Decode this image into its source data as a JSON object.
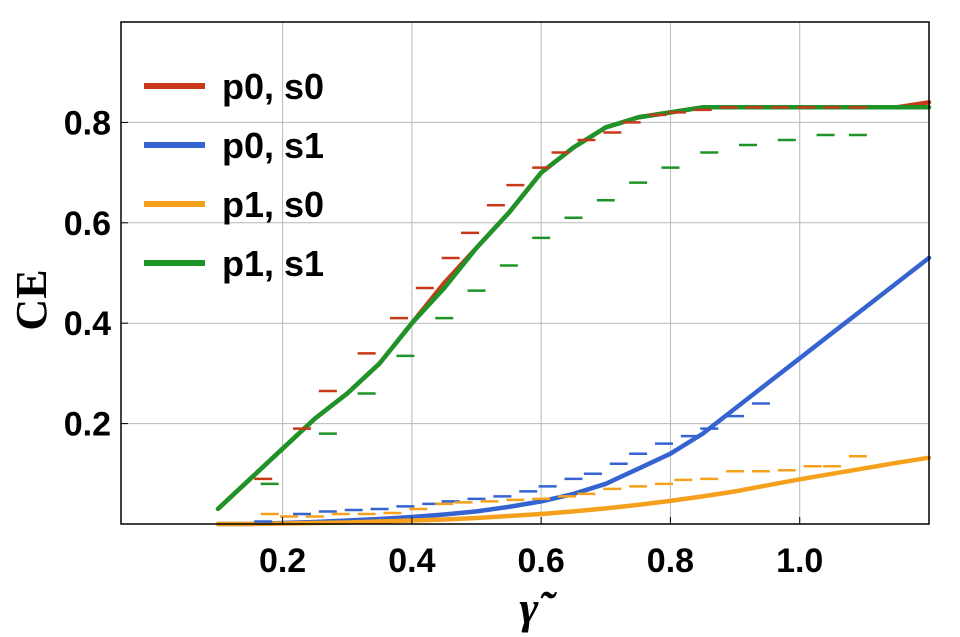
{
  "chart_data": {
    "type": "line",
    "title": "",
    "xlabel": "γ̃",
    "ylabel": "CE",
    "xlim": [
      0.0,
      1.2
    ],
    "ylim": [
      0.0,
      1.0
    ],
    "x_ticks": [
      0.2,
      0.4,
      0.6,
      0.8,
      1.0
    ],
    "x_tick_labels": [
      "0.2",
      "0.4",
      "0.6",
      "0.8",
      "1.0"
    ],
    "y_ticks": [
      0.2,
      0.4,
      0.6,
      0.8
    ],
    "y_tick_labels": [
      "0.2",
      "0.4",
      "0.6",
      "0.8"
    ],
    "grid": true,
    "legend_position": "top-left",
    "series": [
      {
        "name": "p0, s0",
        "color": "#C8391A",
        "curve": {
          "x": [
            0.1,
            0.15,
            0.2,
            0.25,
            0.3,
            0.35,
            0.4,
            0.45,
            0.5,
            0.55,
            0.6,
            0.65,
            0.7,
            0.75,
            0.8,
            0.85,
            0.9,
            0.95,
            1.0,
            1.05,
            1.1,
            1.15,
            1.2
          ],
          "y": [
            0.03,
            0.09,
            0.15,
            0.21,
            0.26,
            0.32,
            0.4,
            0.48,
            0.55,
            0.62,
            0.7,
            0.75,
            0.79,
            0.81,
            0.82,
            0.83,
            0.83,
            0.83,
            0.83,
            0.83,
            0.83,
            0.83,
            0.84
          ]
        },
        "points": {
          "x": [
            0.17,
            0.23,
            0.27,
            0.33,
            0.38,
            0.42,
            0.46,
            0.49,
            0.53,
            0.56,
            0.6,
            0.63,
            0.67,
            0.71,
            0.74,
            0.78,
            0.81,
            0.85,
            0.89,
            0.93,
            0.97,
            1.01,
            1.05,
            1.09
          ],
          "y": [
            0.09,
            0.19,
            0.265,
            0.34,
            0.41,
            0.47,
            0.53,
            0.58,
            0.635,
            0.675,
            0.71,
            0.74,
            0.765,
            0.78,
            0.8,
            0.815,
            0.82,
            0.825,
            0.83,
            0.83,
            0.83,
            0.83,
            0.83,
            0.83
          ]
        }
      },
      {
        "name": "p0, s1",
        "color": "#3563D0",
        "curve": {
          "x": [
            0.1,
            0.15,
            0.2,
            0.25,
            0.3,
            0.35,
            0.4,
            0.45,
            0.5,
            0.55,
            0.6,
            0.65,
            0.7,
            0.75,
            0.8,
            0.85,
            0.9,
            0.95,
            1.0,
            1.05,
            1.1,
            1.15,
            1.2
          ],
          "y": [
            0.0,
            0.0,
            0.002,
            0.004,
            0.007,
            0.01,
            0.014,
            0.019,
            0.025,
            0.034,
            0.045,
            0.06,
            0.08,
            0.11,
            0.14,
            0.18,
            0.23,
            0.28,
            0.33,
            0.38,
            0.43,
            0.48,
            0.53
          ]
        },
        "points": {
          "x": [
            0.17,
            0.23,
            0.27,
            0.31,
            0.35,
            0.39,
            0.43,
            0.46,
            0.5,
            0.54,
            0.58,
            0.61,
            0.65,
            0.68,
            0.72,
            0.75,
            0.79,
            0.83,
            0.86,
            0.9,
            0.94
          ],
          "y": [
            0.005,
            0.02,
            0.025,
            0.028,
            0.03,
            0.035,
            0.04,
            0.045,
            0.05,
            0.055,
            0.065,
            0.075,
            0.09,
            0.1,
            0.12,
            0.14,
            0.16,
            0.175,
            0.19,
            0.215,
            0.24
          ]
        }
      },
      {
        "name": "p1, s0",
        "color": "#F5A11E",
        "curve": {
          "x": [
            0.1,
            0.15,
            0.2,
            0.25,
            0.3,
            0.35,
            0.4,
            0.45,
            0.5,
            0.55,
            0.6,
            0.65,
            0.7,
            0.75,
            0.8,
            0.85,
            0.9,
            0.95,
            1.0,
            1.05,
            1.1,
            1.15,
            1.2
          ],
          "y": [
            0.0,
            0.0,
            0.001,
            0.002,
            0.003,
            0.005,
            0.007,
            0.009,
            0.012,
            0.016,
            0.02,
            0.025,
            0.031,
            0.038,
            0.046,
            0.055,
            0.065,
            0.077,
            0.089,
            0.1,
            0.111,
            0.122,
            0.132
          ]
        },
        "points": {
          "x": [
            0.18,
            0.21,
            0.25,
            0.29,
            0.33,
            0.37,
            0.41,
            0.45,
            0.48,
            0.52,
            0.56,
            0.6,
            0.64,
            0.67,
            0.71,
            0.75,
            0.79,
            0.82,
            0.86,
            0.9,
            0.94,
            0.98,
            1.02,
            1.05,
            1.09
          ],
          "y": [
            0.02,
            0.015,
            0.015,
            0.02,
            0.02,
            0.022,
            0.03,
            0.04,
            0.043,
            0.045,
            0.048,
            0.05,
            0.055,
            0.06,
            0.07,
            0.075,
            0.08,
            0.088,
            0.09,
            0.105,
            0.105,
            0.107,
            0.115,
            0.115,
            0.135
          ]
        }
      },
      {
        "name": "p1, s1",
        "color": "#1E9328",
        "curve": {
          "x": [
            0.1,
            0.15,
            0.2,
            0.25,
            0.3,
            0.35,
            0.4,
            0.45,
            0.5,
            0.55,
            0.6,
            0.65,
            0.7,
            0.75,
            0.8,
            0.85,
            0.9,
            0.95,
            1.0,
            1.05,
            1.1,
            1.15,
            1.2
          ],
          "y": [
            0.03,
            0.09,
            0.15,
            0.21,
            0.26,
            0.32,
            0.4,
            0.47,
            0.55,
            0.62,
            0.7,
            0.75,
            0.79,
            0.81,
            0.82,
            0.83,
            0.83,
            0.83,
            0.83,
            0.83,
            0.83,
            0.83,
            0.83
          ]
        },
        "points": {
          "x": [
            0.18,
            0.27,
            0.33,
            0.39,
            0.45,
            0.5,
            0.55,
            0.6,
            0.65,
            0.7,
            0.75,
            0.8,
            0.86,
            0.92,
            0.98,
            1.04,
            1.09
          ],
          "y": [
            0.08,
            0.18,
            0.26,
            0.335,
            0.41,
            0.465,
            0.515,
            0.57,
            0.61,
            0.645,
            0.68,
            0.71,
            0.74,
            0.755,
            0.765,
            0.775,
            0.775
          ]
        }
      }
    ]
  }
}
